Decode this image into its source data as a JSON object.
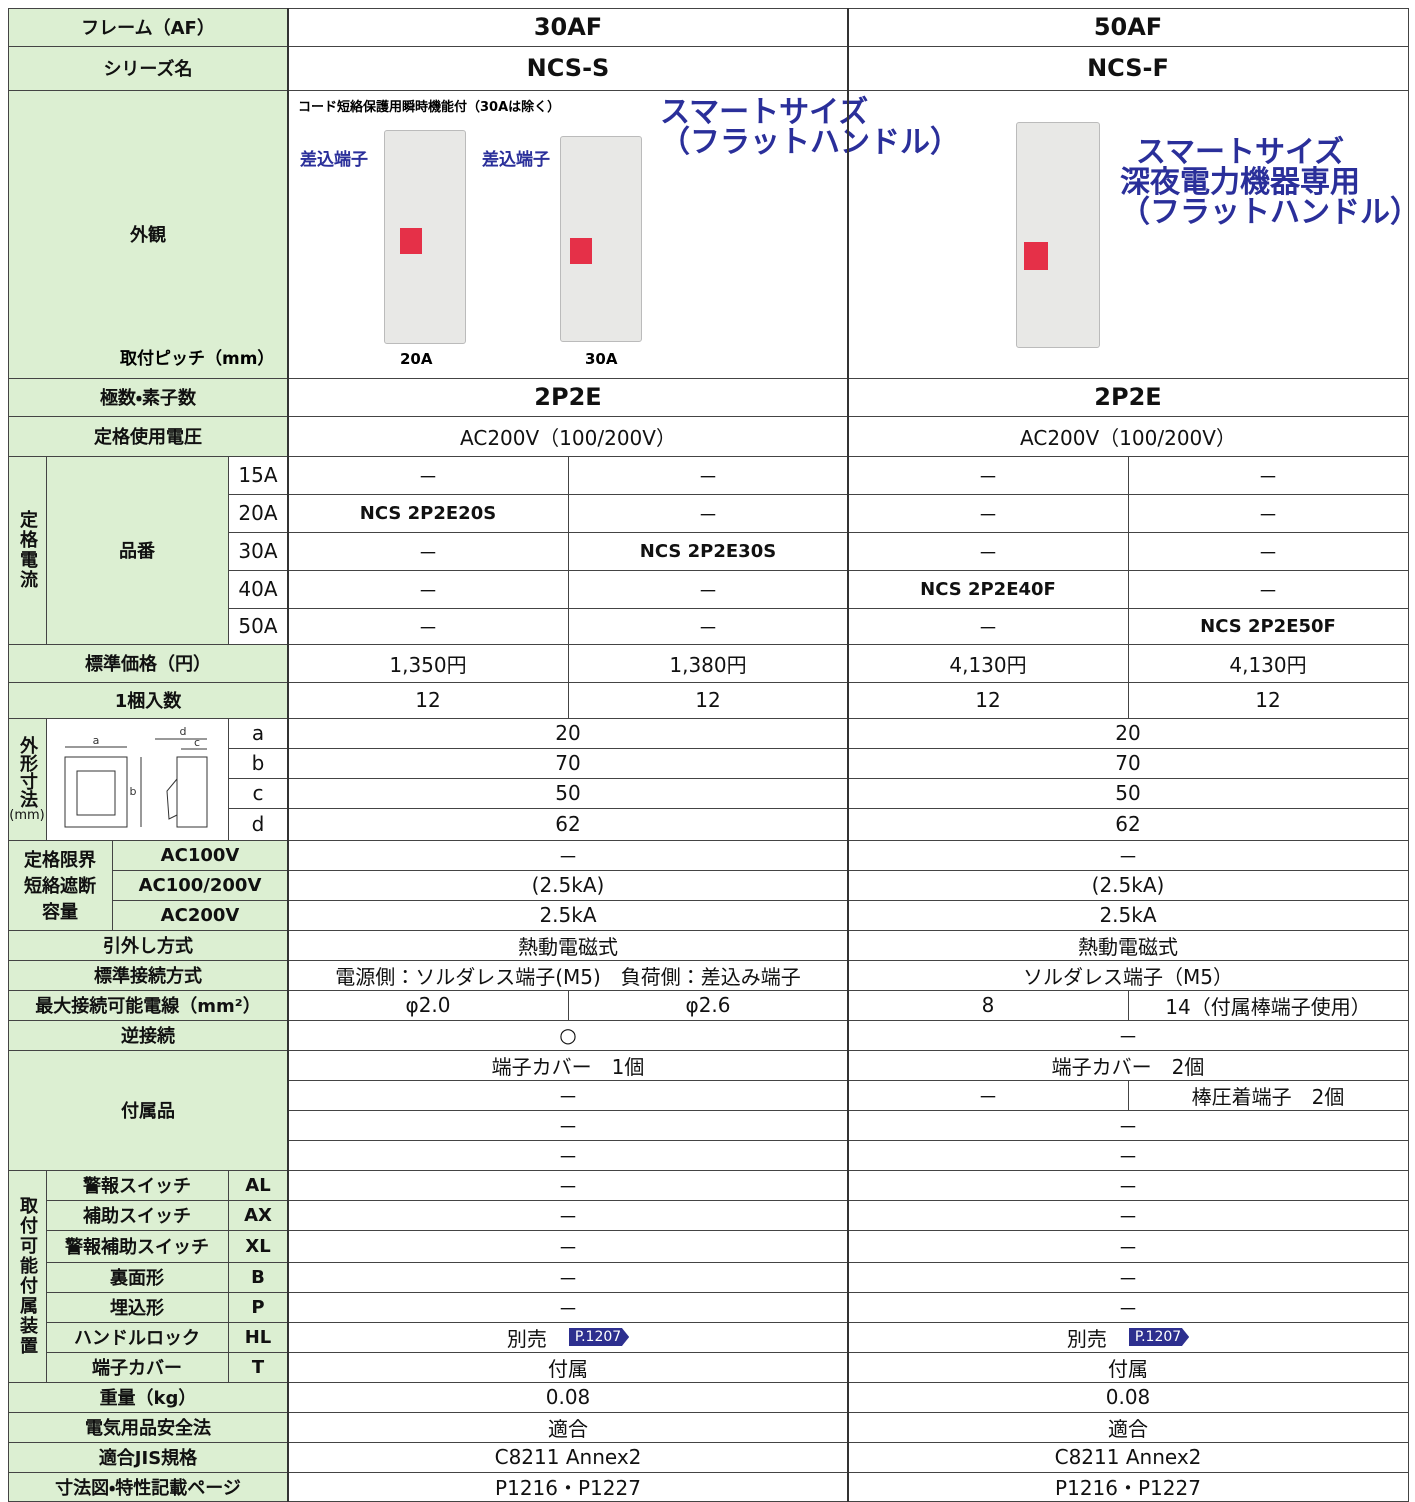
{
  "frame": {
    "label": "フレーム（AF）",
    "values": [
      "30AF",
      "50AF"
    ]
  },
  "series": {
    "label": "シリーズ名",
    "values": [
      "NCS-S",
      "NCS-F"
    ]
  },
  "appearance": {
    "label": "外観",
    "pitch_label": "取付ピッチ（mm）",
    "note": "コード短絡保護用瞬時機能付（30Aは除く）",
    "terminal_labels": [
      "差込端子",
      "差込端子"
    ],
    "photo_labels": [
      "20A",
      "30A"
    ],
    "captions": [
      [
        "スマートサイズ",
        "（フラットハンドル）"
      ],
      [
        "スマートサイズ",
        "深夜電力機器専用",
        "（フラットハンドル）"
      ]
    ]
  },
  "poles": {
    "label": "極数・素子数",
    "values": [
      "2P2E",
      "2P2E"
    ]
  },
  "voltage": {
    "label": "定格使用電圧",
    "values": [
      "AC200V（100/200V）",
      "AC200V（100/200V）"
    ]
  },
  "rated_current": {
    "label": "定格電流",
    "sub_label": "品番",
    "rows": [
      {
        "current": "15A",
        "values": [
          "－",
          "－",
          "－",
          "－"
        ]
      },
      {
        "current": "20A",
        "values": [
          "NCS 2P2E20S",
          "－",
          "－",
          "－"
        ]
      },
      {
        "current": "30A",
        "values": [
          "－",
          "NCS 2P2E30S",
          "－",
          "－"
        ]
      },
      {
        "current": "40A",
        "values": [
          "－",
          "－",
          "NCS 2P2E40F",
          "－"
        ]
      },
      {
        "current": "50A",
        "values": [
          "－",
          "－",
          "－",
          "NCS 2P2E50F"
        ]
      }
    ]
  },
  "price": {
    "label": "標準価格（円）",
    "values": [
      "1,350円",
      "1,380円",
      "4,130円",
      "4,130円"
    ]
  },
  "pack": {
    "label": "1梱入数",
    "values": [
      12,
      12,
      12,
      12
    ]
  },
  "dimensions": {
    "label": "外形寸法",
    "unit": "(mm)",
    "rows": [
      {
        "key": "a",
        "values": [
          20,
          20
        ]
      },
      {
        "key": "b",
        "values": [
          70,
          70
        ]
      },
      {
        "key": "c",
        "values": [
          50,
          50
        ]
      },
      {
        "key": "d",
        "values": [
          62,
          62
        ]
      }
    ]
  },
  "breaking": {
    "label": [
      "定格限界",
      "短絡遮断",
      "容量"
    ],
    "rows": [
      {
        "voltage": "AC100V",
        "values": [
          "－",
          "－"
        ]
      },
      {
        "voltage": "AC100/200V",
        "values": [
          "(2.5kA)",
          "(2.5kA)"
        ]
      },
      {
        "voltage": "AC200V",
        "values": [
          "2.5kA",
          "2.5kA"
        ]
      }
    ]
  },
  "trip": {
    "label": "引外し方式",
    "values": [
      "熱動電磁式",
      "熱動電磁式"
    ]
  },
  "connection": {
    "label": "標準接続方式",
    "values": [
      "電源側：ソルダレス端子(M5)　負荷側：差込み端子",
      "ソルダレス端子（M5）"
    ]
  },
  "max_wire": {
    "label": "最大接続可能電線（mm²）",
    "values": [
      "φ2.0",
      "φ2.6",
      "8",
      "14（付属棒端子使用）"
    ]
  },
  "reverse": {
    "label": "逆接続",
    "values": [
      "○",
      "－"
    ]
  },
  "accessories": {
    "label": "付属品",
    "rows": [
      [
        "端子カバー　1個",
        "端子カバー　2個"
      ],
      [
        "－",
        "－",
        "棒圧着端子　2個"
      ],
      [
        "－",
        "－"
      ],
      [
        "－",
        "－"
      ]
    ]
  },
  "options": {
    "label": "取付可能付属装置",
    "rows": [
      {
        "name": "警報スイッチ",
        "code": "AL",
        "values": [
          "－",
          "－"
        ]
      },
      {
        "name": "補助スイッチ",
        "code": "AX",
        "values": [
          "－",
          "－"
        ]
      },
      {
        "name": "警報補助スイッチ",
        "code": "XL",
        "values": [
          "－",
          "－"
        ]
      },
      {
        "name": "裏面形",
        "code": "B",
        "values": [
          "－",
          "－"
        ]
      },
      {
        "name": "埋込形",
        "code": "P",
        "values": [
          "－",
          "－"
        ]
      },
      {
        "name": "ハンドルロック",
        "code": "HL",
        "values": [
          "別売",
          "別売"
        ],
        "links": [
          "P.1207",
          "P.1207"
        ]
      },
      {
        "name": "端子カバー",
        "code": "T",
        "values": [
          "付属",
          "付属"
        ]
      }
    ]
  },
  "weight": {
    "label": "重量（kg）",
    "values": [
      0.08,
      0.08
    ]
  },
  "pse": {
    "label": "電気用品安全法",
    "values": [
      "適合",
      "適合"
    ]
  },
  "jis": {
    "label": "適合JIS規格",
    "values": [
      "C8211 Annex2",
      "C8211 Annex2"
    ]
  },
  "pages": {
    "label": "寸法図・特性記載ページ",
    "values": [
      "P1216・P1227",
      "P1216・P1227"
    ]
  }
}
